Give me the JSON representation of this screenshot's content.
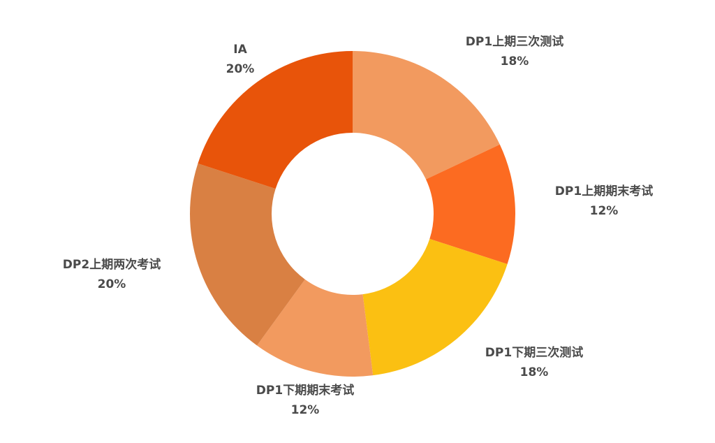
{
  "chart_data": {
    "type": "pie",
    "variant": "donut",
    "title": "",
    "unit": "%",
    "start_angle_deg": 0,
    "direction": "clockwise",
    "slices": [
      {
        "label": "DP1上期三次测试",
        "value": 18,
        "display": "18%",
        "color": "#F29A5F"
      },
      {
        "label": "DP1上期期末考试",
        "value": 12,
        "display": "12%",
        "color": "#FC6B21"
      },
      {
        "label": "DP1下期三次测试",
        "value": 18,
        "display": "18%",
        "color": "#FBC012"
      },
      {
        "label": "DP1下期期末考试",
        "value": 12,
        "display": "12%",
        "color": "#F29A5F"
      },
      {
        "label": "DP2上期两次考试",
        "value": 20,
        "display": "20%",
        "color": "#D98043"
      },
      {
        "label": "IA",
        "value": 20,
        "display": "20%",
        "color": "#E8540A"
      }
    ]
  }
}
